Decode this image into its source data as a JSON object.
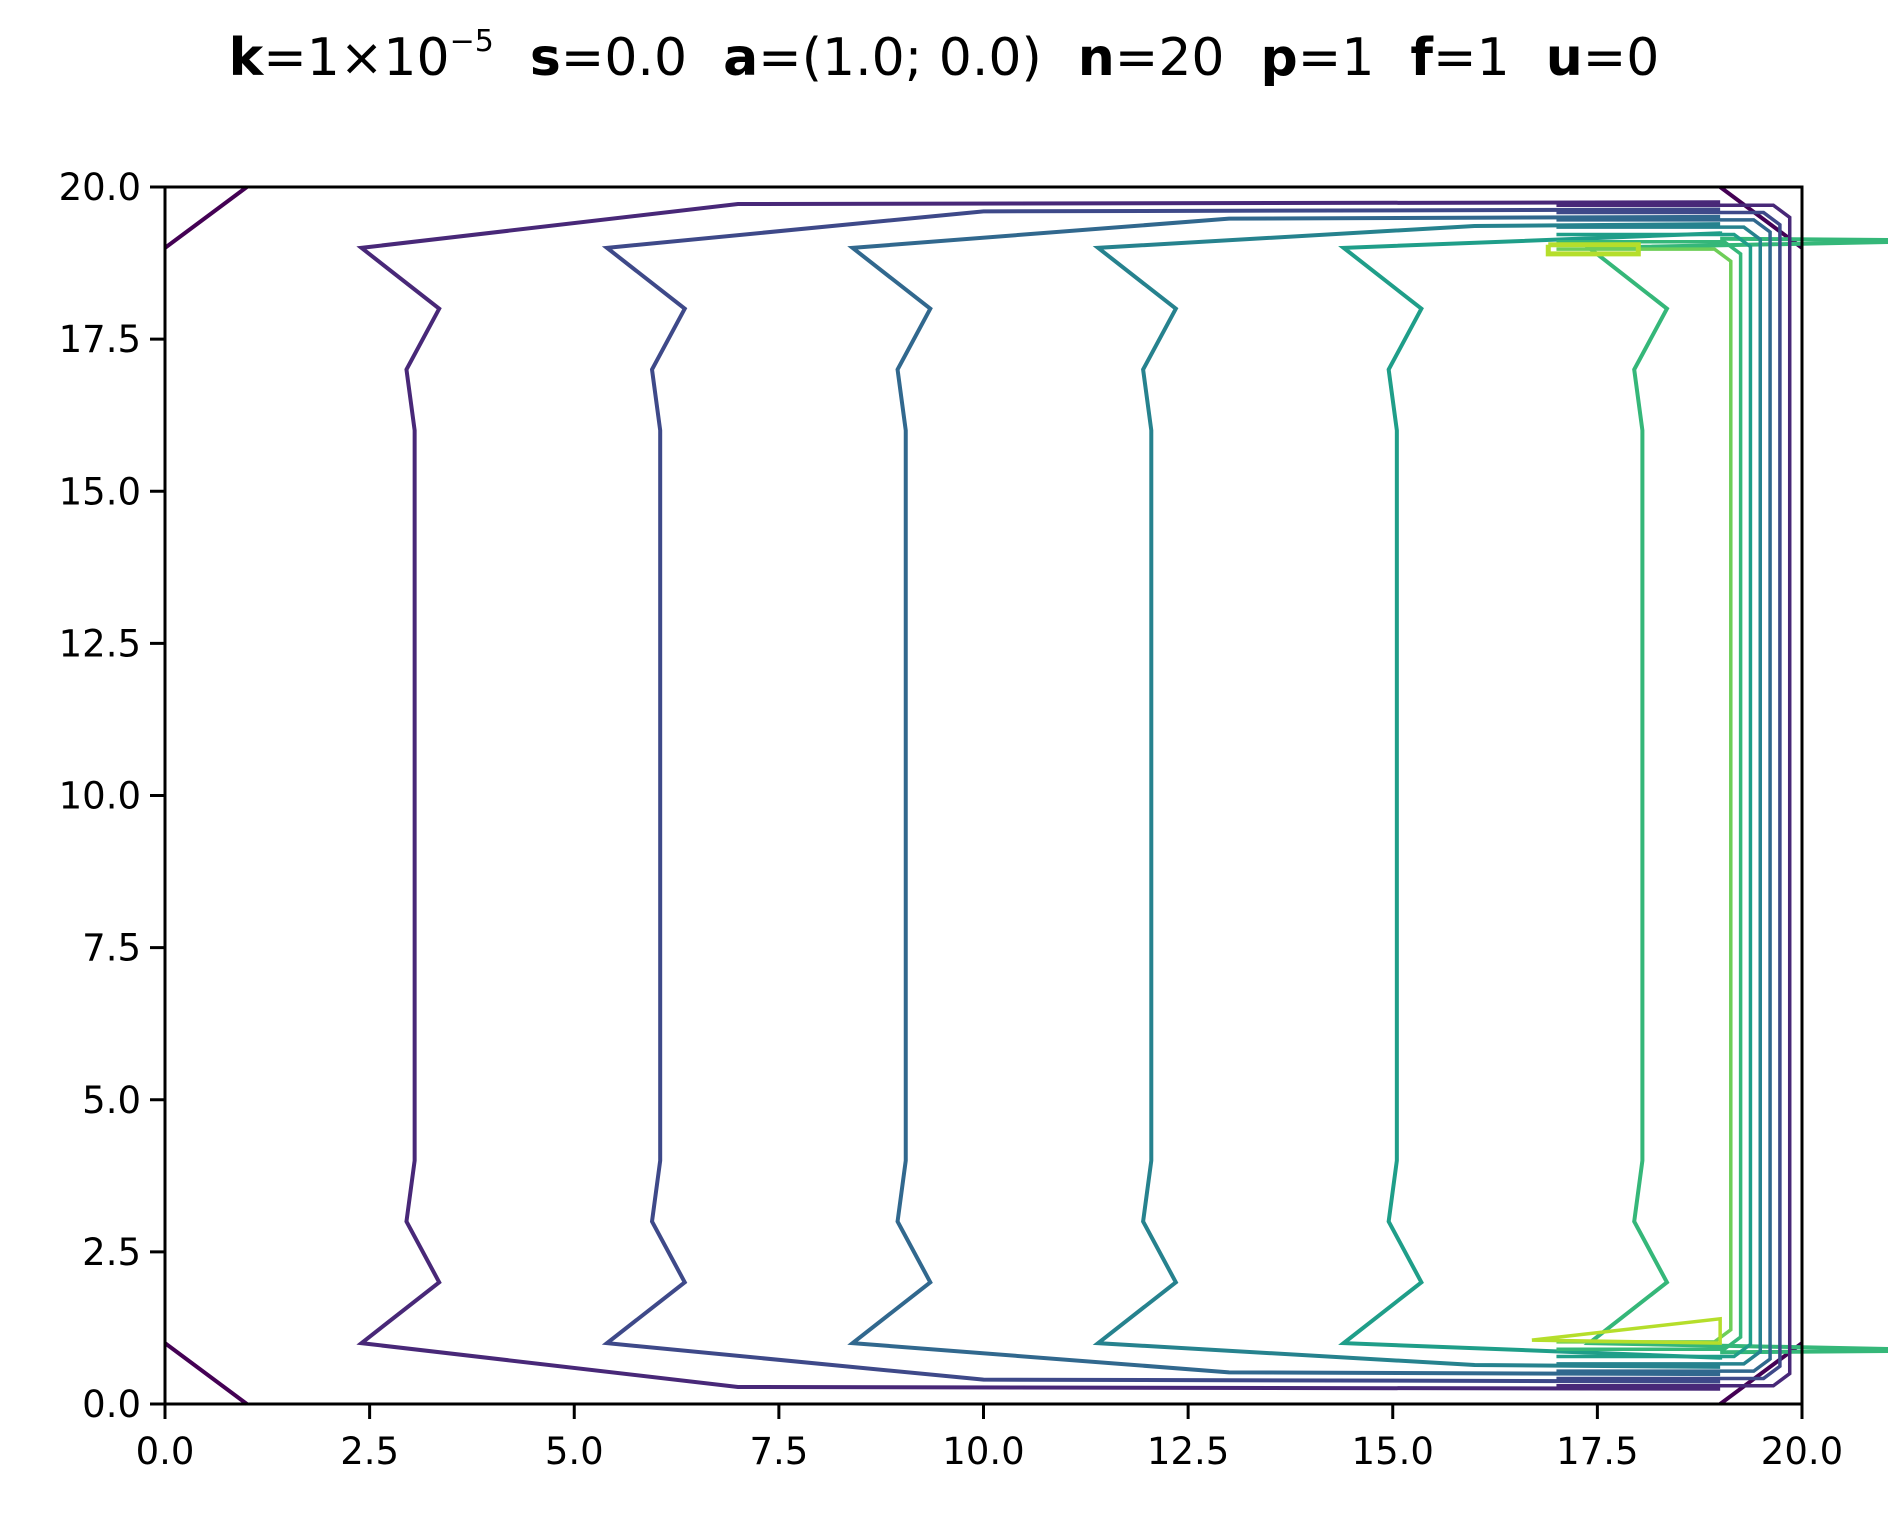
{
  "title": {
    "params": [
      {
        "name": "k",
        "eq": "=1×10",
        "sup": "−5"
      },
      {
        "name": "s",
        "eq": "=0.0",
        "sup": ""
      },
      {
        "name": "a",
        "eq": "=(1.0; 0.0)",
        "sup": ""
      },
      {
        "name": "n",
        "eq": "=20",
        "sup": ""
      },
      {
        "name": "p",
        "eq": "=1",
        "sup": ""
      },
      {
        "name": "f",
        "eq": "=1",
        "sup": ""
      },
      {
        "name": "u",
        "eq": "=0",
        "sup": ""
      }
    ]
  },
  "axes": {
    "x_ticks": [
      "0.0",
      "2.5",
      "5.0",
      "7.5",
      "10.0",
      "12.5",
      "15.0",
      "17.5",
      "20.0"
    ],
    "y_ticks": [
      "0.0",
      "2.5",
      "5.0",
      "7.5",
      "10.0",
      "12.5",
      "15.0",
      "17.5",
      "20.0"
    ]
  },
  "chart_data": {
    "type": "contour",
    "title": "k=1×10^-5  s=0.0  a=(1.0; 0.0)  n=20  p=1  f=1  u=0",
    "xlabel": "",
    "ylabel": "",
    "xlim": [
      0,
      20
    ],
    "ylim": [
      0,
      20
    ],
    "x_ticks": [
      0,
      2.5,
      5,
      7.5,
      10,
      12.5,
      15,
      17.5,
      20
    ],
    "y_ticks": [
      0,
      2.5,
      5,
      7.5,
      10,
      12.5,
      15,
      17.5,
      20
    ],
    "grid": false,
    "legend": null,
    "colormap": "viridis",
    "contour_lines": [
      {
        "level_index": 0,
        "color": "#440154",
        "x_position_mid": 3.0,
        "shape": "corner segments + U-shaped boundary"
      },
      {
        "level_index": 1,
        "color": "#482878",
        "x_position_mid": 3.0
      },
      {
        "level_index": 2,
        "color": "#3e4989",
        "x_position_mid": 6.0
      },
      {
        "level_index": 3,
        "color": "#31688e",
        "x_position_mid": 9.0
      },
      {
        "level_index": 4,
        "color": "#26828e",
        "x_position_mid": 12.0
      },
      {
        "level_index": 5,
        "color": "#1f9e89",
        "x_position_mid": 15.0
      },
      {
        "level_index": 6,
        "color": "#35b779",
        "x_position_mid": 18.0
      },
      {
        "level_index": 7,
        "color": "#6ece58",
        "x_position_mid": 19.0
      },
      {
        "level_index": 8,
        "color": "#b5de2b",
        "x_position_mid": 17.5,
        "shape": "small closed loops near (17.5,19) and (17.5,1)"
      }
    ]
  }
}
